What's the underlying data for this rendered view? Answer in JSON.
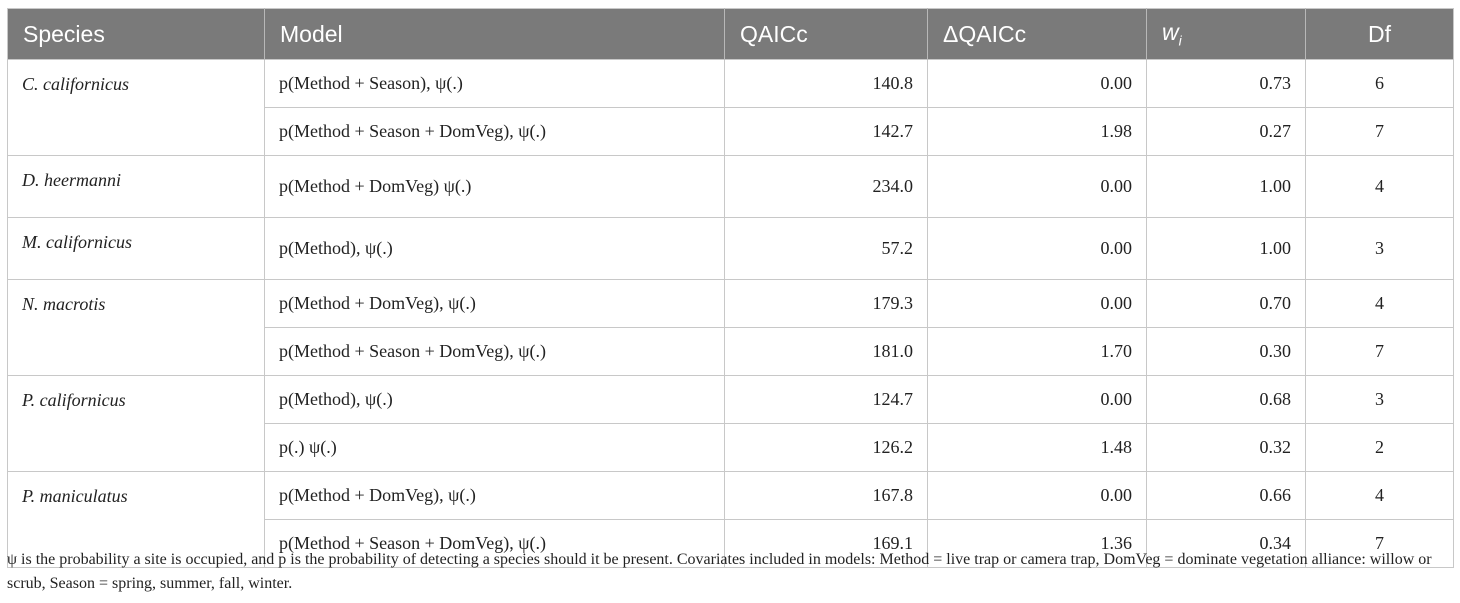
{
  "table": {
    "headers": {
      "species": "Species",
      "model": "Model",
      "qaicc": "QAICc",
      "delta": "ΔQAICc",
      "wi_base": "w",
      "wi_sub": "i",
      "df": "Df"
    },
    "groups": [
      {
        "species": "C. californicus",
        "rows": [
          {
            "model": "p(Method + Season), ψ(.)",
            "qaicc": "140.8",
            "delta": "0.00",
            "wi": "0.73",
            "df": "6"
          },
          {
            "model": "p(Method + Season + DomVeg), ψ(.)",
            "qaicc": "142.7",
            "delta": "1.98",
            "wi": "0.27",
            "df": "7"
          }
        ]
      },
      {
        "species": "D. heermanni",
        "rows": [
          {
            "model": "p(Method + DomVeg) ψ(.)",
            "qaicc": "234.0",
            "delta": "0.00",
            "wi": "1.00",
            "df": "4"
          }
        ]
      },
      {
        "species": "M. californicus",
        "rows": [
          {
            "model": "p(Method), ψ(.)",
            "qaicc": "57.2",
            "delta": "0.00",
            "wi": "1.00",
            "df": "3"
          }
        ]
      },
      {
        "species": "N. macrotis",
        "rows": [
          {
            "model": "p(Method + DomVeg), ψ(.)",
            "qaicc": "179.3",
            "delta": "0.00",
            "wi": "0.70",
            "df": "4"
          },
          {
            "model": "p(Method + Season + DomVeg), ψ(.)",
            "qaicc": "181.0",
            "delta": "1.70",
            "wi": "0.30",
            "df": "7"
          }
        ]
      },
      {
        "species": "P. californicus",
        "rows": [
          {
            "model": "p(Method), ψ(.)",
            "qaicc": "124.7",
            "delta": "0.00",
            "wi": "0.68",
            "df": "3"
          },
          {
            "model": "p(.) ψ(.)",
            "qaicc": "126.2",
            "delta": "1.48",
            "wi": "0.32",
            "df": "2"
          }
        ]
      },
      {
        "species": "P. maniculatus",
        "rows": [
          {
            "model": "p(Method + DomVeg), ψ(.)",
            "qaicc": "167.8",
            "delta": "0.00",
            "wi": "0.66",
            "df": "4"
          },
          {
            "model": "p(Method + Season + DomVeg), ψ(.)",
            "qaicc": "169.1",
            "delta": "1.36",
            "wi": "0.34",
            "df": "7"
          }
        ]
      }
    ]
  },
  "footnote": "ψ is the probability a site is occupied, and p is the probability of detecting a species should it be present. Covariates included in models: Method = live trap or camera trap, DomVeg = dominate vegetation alliance: willow or scrub, Season = spring, summer, fall, winter."
}
